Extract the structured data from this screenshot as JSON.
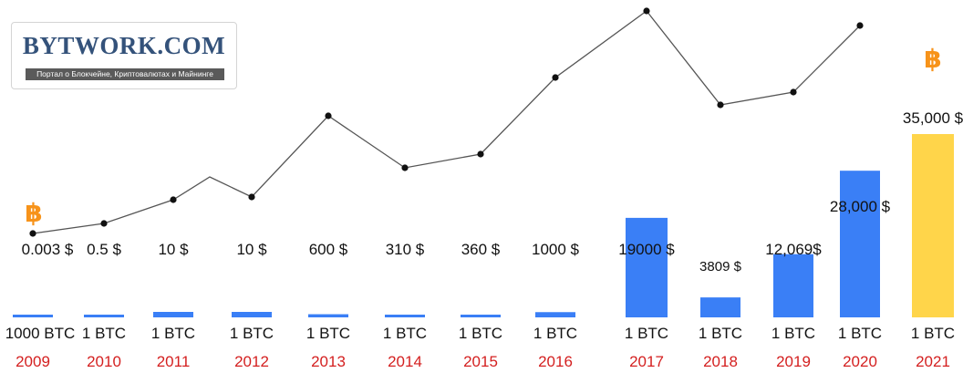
{
  "logo": {
    "name": "BYTWORK.COM",
    "tagline": "Портал о Блокчейне, Криптовалютах и Майнинге"
  },
  "colors": {
    "bar": "#3a7ff6",
    "highlight_bar": "#ffd54a",
    "year_label": "#d42020",
    "line": "#555555",
    "point": "#111111",
    "bitcoin_icon": "#f7931a",
    "text": "#111111"
  },
  "icons": [
    "bitcoin-icon",
    "bitcoin-icon"
  ],
  "chart_data": {
    "type": "bar",
    "title": "",
    "xlabel": "",
    "ylabel": "",
    "categories": [
      "2009",
      "2010",
      "2011",
      "2012",
      "2013",
      "2014",
      "2015",
      "2016",
      "2017",
      "2018",
      "2019",
      "2020",
      "2021"
    ],
    "amounts": [
      "1000 BTC",
      "1 BTC",
      "1 BTC",
      "1 BTC",
      "1 BTC",
      "1 BTC",
      "1 BTC",
      "1 BTC",
      "1 BTC",
      "1 BTC",
      "1 BTC",
      "1 BTC",
      "1 BTC"
    ],
    "price_labels": [
      "0.003 $",
      "0.5 $",
      "10 $",
      "10 $",
      "600 $",
      "310 $",
      "360 $",
      "1000 $",
      "19000 $",
      "3809 $",
      "12,069$",
      "28,000 $",
      "35,000 $"
    ],
    "values": [
      3,
      0.5,
      10,
      10,
      600,
      310,
      360,
      1000,
      19000,
      3809,
      12069,
      28000,
      35000
    ],
    "highlight_index": 12,
    "trend_line": true,
    "grid": false,
    "legend": "none"
  }
}
